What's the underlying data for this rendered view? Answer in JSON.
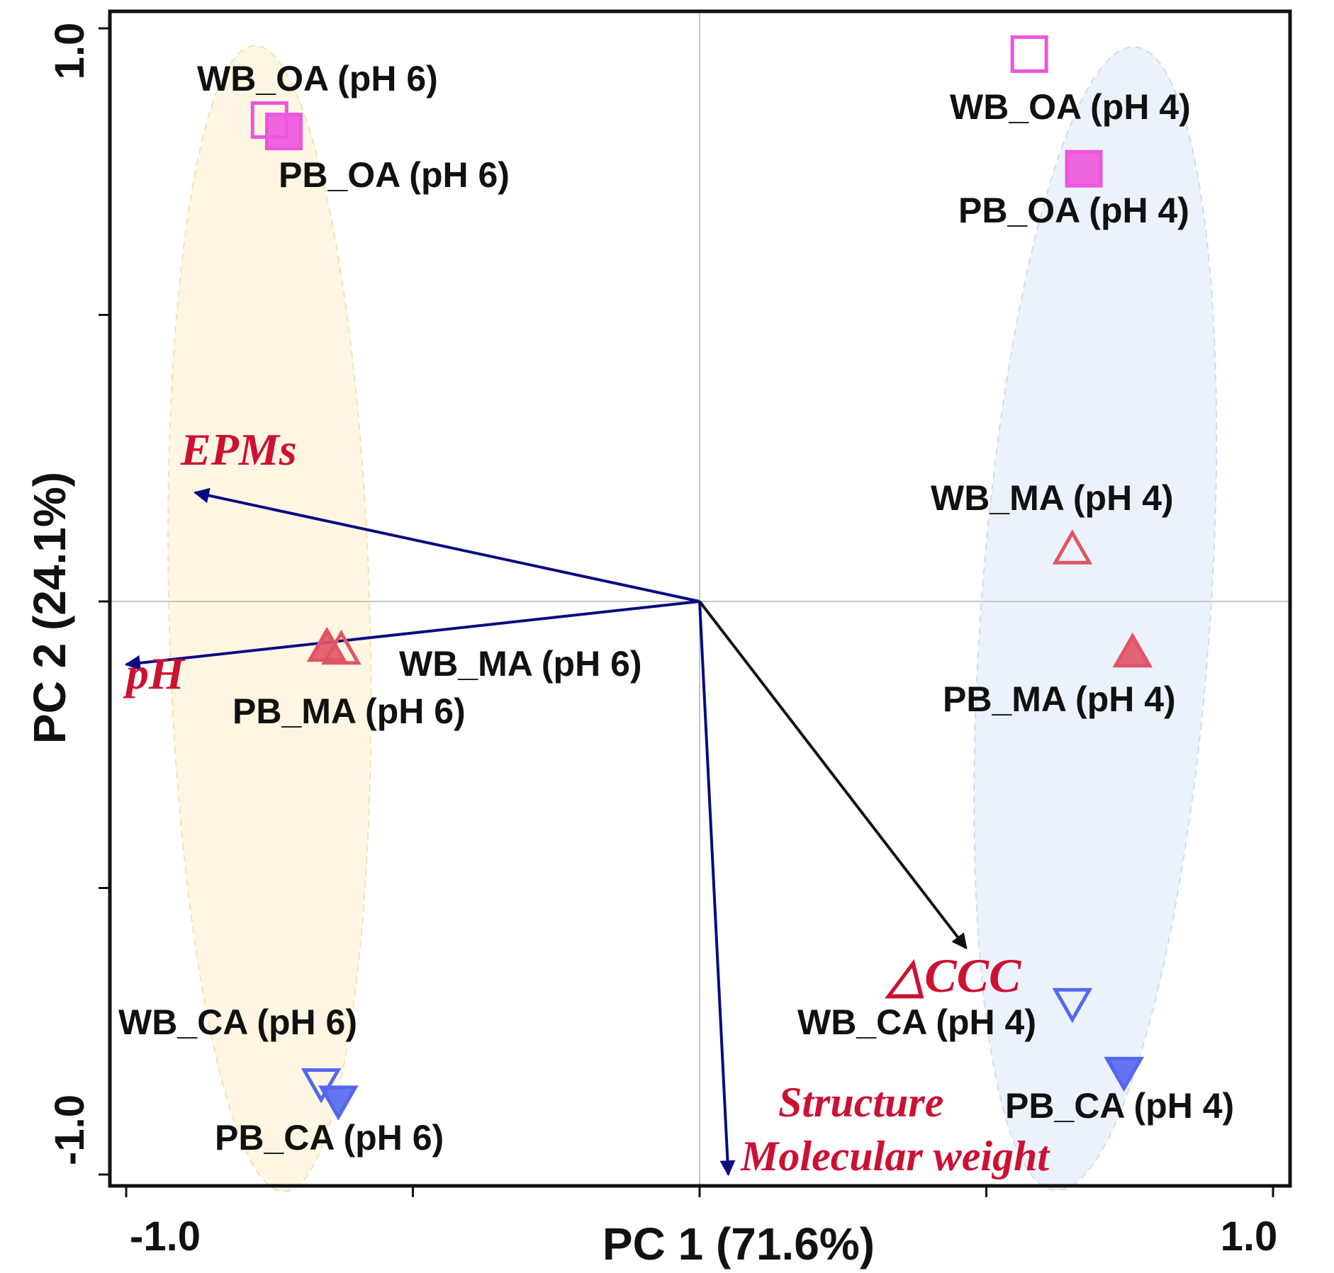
{
  "chart_data": {
    "type": "scatter",
    "subtype": "pca-biplot",
    "xlabel": "PC 1 (71.6%)",
    "ylabel": "PC 2 (24.1%)",
    "xlim": [
      -1.0,
      1.0
    ],
    "ylim": [
      -1.0,
      1.0
    ],
    "x_tick_labels": [
      {
        "value": -1.0,
        "label": "-1.0"
      },
      {
        "value": 1.0,
        "label": "1.0"
      }
    ],
    "y_tick_labels": [
      {
        "value": 1.0,
        "label": "1.0"
      },
      {
        "value": -1.0,
        "label": "-1.0"
      }
    ],
    "x_ticks": [
      -1.0,
      -0.5,
      0.0,
      0.5,
      1.0
    ],
    "y_ticks": [
      -1.0,
      -0.5,
      0.0,
      0.5,
      1.0
    ],
    "reference_lines": {
      "x": 0,
      "y": 0
    },
    "colors": {
      "OA": "#ee55dd",
      "MA": "#e05565",
      "CA": "#5566ee",
      "vector": "#0a0a80",
      "vector_delta": "#111111",
      "vector_label": "#cc1133",
      "ellipse_ph6": "#fdf3da",
      "ellipse_ph4": "#e6eef9",
      "ellipse_ph6_border": "#f2e2b3",
      "ellipse_ph4_border": "#cfdcef"
    },
    "groups": [
      {
        "name": "pH 6",
        "color_key": "ellipse_ph6",
        "center": [
          -0.75,
          -0.03
        ],
        "semi_x": 0.175,
        "semi_y": 1.0,
        "angle_deg": -1.5
      },
      {
        "name": "pH 4",
        "color_key": "ellipse_ph4",
        "center": [
          0.69,
          -0.03
        ],
        "semi_x": 0.2,
        "semi_y": 1.0,
        "angle_deg": 4
      }
    ],
    "points": [
      {
        "label": "WB_OA (pH 6)",
        "x": -0.75,
        "y": 0.84,
        "marker": "square",
        "filled": false,
        "color_key": "OA"
      },
      {
        "label": "PB_OA (pH 6)",
        "x": -0.725,
        "y": 0.82,
        "marker": "square",
        "filled": true,
        "color_key": "OA"
      },
      {
        "label": "WB_OA (pH 4)",
        "x": 0.575,
        "y": 0.955,
        "marker": "square",
        "filled": false,
        "color_key": "OA"
      },
      {
        "label": "PB_OA (pH 4)",
        "x": 0.67,
        "y": 0.755,
        "marker": "square",
        "filled": true,
        "color_key": "OA"
      },
      {
        "label": "WB_MA (pH 6)",
        "x": -0.625,
        "y": -0.085,
        "marker": "triangle-up",
        "filled": false,
        "color_key": "MA"
      },
      {
        "label": "PB_MA (pH 6)",
        "x": -0.65,
        "y": -0.08,
        "marker": "triangle-up",
        "filled": true,
        "color_key": "MA"
      },
      {
        "label": "WB_MA (pH 4)",
        "x": 0.65,
        "y": 0.09,
        "marker": "triangle-up",
        "filled": false,
        "color_key": "MA"
      },
      {
        "label": "PB_MA (pH 4)",
        "x": 0.755,
        "y": -0.09,
        "marker": "triangle-up",
        "filled": true,
        "color_key": "MA"
      },
      {
        "label": "WB_CA (pH 6)",
        "x": -0.66,
        "y": -0.84,
        "marker": "triangle-down",
        "filled": false,
        "color_key": "CA"
      },
      {
        "label": "PB_CA (pH 6)",
        "x": -0.63,
        "y": -0.87,
        "marker": "triangle-down",
        "filled": true,
        "color_key": "CA"
      },
      {
        "label": "WB_CA (pH 4)",
        "x": 0.65,
        "y": -0.7,
        "marker": "triangle-down",
        "filled": false,
        "color_key": "CA"
      },
      {
        "label": "PB_CA (pH 4)",
        "x": 0.74,
        "y": -0.82,
        "marker": "triangle-down",
        "filled": true,
        "color_key": "CA"
      }
    ],
    "vectors": [
      {
        "label": "EPMs",
        "x": -0.88,
        "y": 0.19,
        "color_key": "vector"
      },
      {
        "label": "pH",
        "x": -1.0,
        "y": -0.11,
        "color_key": "vector"
      },
      {
        "label": "Structure",
        "x": 0.05,
        "y": -1.0,
        "color_key": "vector"
      },
      {
        "label": "Molecular weight",
        "x": 0.05,
        "y": -1.0,
        "color_key": "vector"
      },
      {
        "label": "△CCC",
        "x": 0.465,
        "y": -0.605,
        "color_key": "vector_delta"
      }
    ]
  }
}
